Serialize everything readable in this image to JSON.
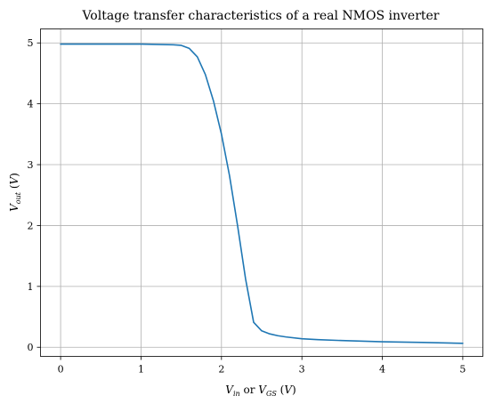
{
  "chart_data": {
    "type": "line",
    "title": "Voltage transfer characteristics of a real NMOS inverter",
    "xlabel": "V_in or V_GS (V)",
    "ylabel": "V_out (V)",
    "xlim": [
      -0.25,
      5.25
    ],
    "ylim": [
      -0.15,
      5.23
    ],
    "xticks": [
      0,
      1,
      2,
      3,
      4,
      5
    ],
    "yticks": [
      0,
      1,
      2,
      3,
      4,
      5
    ],
    "grid": true,
    "series": [
      {
        "color": "#1f77b4",
        "x": [
          0,
          0.5,
          1.0,
          1.2,
          1.4,
          1.5,
          1.6,
          1.7,
          1.8,
          1.9,
          2.0,
          2.1,
          2.2,
          2.3,
          2.4,
          2.5,
          2.6,
          2.7,
          2.8,
          3.0,
          3.2,
          3.5,
          4.0,
          4.5,
          5.0
        ],
        "y": [
          4.98,
          4.98,
          4.98,
          4.975,
          4.97,
          4.96,
          4.91,
          4.77,
          4.48,
          4.05,
          3.5,
          2.82,
          2.0,
          1.12,
          0.41,
          0.27,
          0.22,
          0.19,
          0.17,
          0.14,
          0.125,
          0.11,
          0.09,
          0.08,
          0.065
        ]
      }
    ]
  }
}
